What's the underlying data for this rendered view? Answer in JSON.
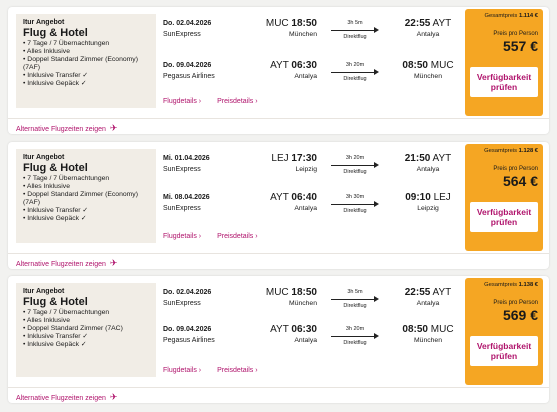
{
  "offers": [
    {
      "info": {
        "type": "Itur Angebot",
        "title": "Flug & Hotel",
        "features": [
          "7 Tage / 7 Übernachtungen",
          "Alles Inklusive",
          "Doppel Standard Zimmer (Economy) (7AF)",
          "Inklusive Transfer ✓",
          "Inklusive Gepäck ✓"
        ]
      },
      "legs": [
        {
          "date": "Do. 02.04.2026",
          "airline": "SunExpress",
          "dep_code": "MUC",
          "dep_time": "18:50",
          "dep_city": "München",
          "duration": "3h 5m",
          "stops": "Direktflug",
          "arr_time": "22:55",
          "arr_code": "AYT",
          "arr_city": "Antalya"
        },
        {
          "date": "Do. 09.04.2026",
          "airline": "Pegasus Airlines",
          "dep_code": "AYT",
          "dep_time": "06:30",
          "dep_city": "Antalya",
          "duration": "3h 20m",
          "stops": "Direktflug",
          "arr_time": "08:50",
          "arr_code": "MUC",
          "arr_city": "München"
        }
      ],
      "links": {
        "flight": "Flugdetails  ›",
        "price": "Preisdetails  ›"
      },
      "price": {
        "total_label": "Gesamtpreis",
        "total": "1.114 €",
        "per_person_label": "Preis pro Person",
        "per_person": "557 €",
        "button": "Verfügbarkeit prüfen"
      },
      "alt_label": "Alternative Flugzeiten zeigen"
    },
    {
      "info": {
        "type": "Itur Angebot",
        "title": "Flug & Hotel",
        "features": [
          "7 Tage / 7 Übernachtungen",
          "Alles Inklusive",
          "Doppel Standard Zimmer (Economy) (7AF)",
          "Inklusive Transfer ✓",
          "Inklusive Gepäck ✓"
        ]
      },
      "legs": [
        {
          "date": "Mi. 01.04.2026",
          "airline": "SunExpress",
          "dep_code": "LEJ",
          "dep_time": "17:30",
          "dep_city": "Leipzig",
          "duration": "3h 20m",
          "stops": "Direktflug",
          "arr_time": "21:50",
          "arr_code": "AYT",
          "arr_city": "Antalya"
        },
        {
          "date": "Mi. 08.04.2026",
          "airline": "SunExpress",
          "dep_code": "AYT",
          "dep_time": "06:40",
          "dep_city": "Antalya",
          "duration": "3h 30m",
          "stops": "Direktflug",
          "arr_time": "09:10",
          "arr_code": "LEJ",
          "arr_city": "Leipzig"
        }
      ],
      "links": {
        "flight": "Flugdetails  ›",
        "price": "Preisdetails  ›"
      },
      "price": {
        "total_label": "Gesamtpreis",
        "total": "1.128 €",
        "per_person_label": "Preis pro Person",
        "per_person": "564 €",
        "button": "Verfügbarkeit prüfen"
      },
      "alt_label": "Alternative Flugzeiten zeigen"
    },
    {
      "info": {
        "type": "Itur Angebot",
        "title": "Flug & Hotel",
        "features": [
          "7 Tage / 7 Übernachtungen",
          "Alles Inklusive",
          "Doppel Standard Zimmer (7AC)",
          "Inklusive Transfer ✓",
          "Inklusive Gepäck ✓"
        ]
      },
      "legs": [
        {
          "date": "Do. 02.04.2026",
          "airline": "SunExpress",
          "dep_code": "MUC",
          "dep_time": "18:50",
          "dep_city": "München",
          "duration": "3h 5m",
          "stops": "Direktflug",
          "arr_time": "22:55",
          "arr_code": "AYT",
          "arr_city": "Antalya"
        },
        {
          "date": "Do. 09.04.2026",
          "airline": "Pegasus Airlines",
          "dep_code": "AYT",
          "dep_time": "06:30",
          "dep_city": "Antalya",
          "duration": "3h 20m",
          "stops": "Direktflug",
          "arr_time": "08:50",
          "arr_code": "MUC",
          "arr_city": "München"
        }
      ],
      "links": {
        "flight": "Flugdetails  ›",
        "price": "Preisdetails  ›"
      },
      "price": {
        "total_label": "Gesamtpreis",
        "total": "1.138 €",
        "per_person_label": "Preis pro Person",
        "per_person": "569 €",
        "button": "Verfügbarkeit prüfen"
      },
      "alt_label": "Alternative Flugzeiten zeigen"
    }
  ],
  "colors": {
    "accent": "#b0146c",
    "price_box": "#f5a623",
    "info_bg": "#f1ede6"
  },
  "icons": {
    "alt_icon": "airplane-icon"
  }
}
